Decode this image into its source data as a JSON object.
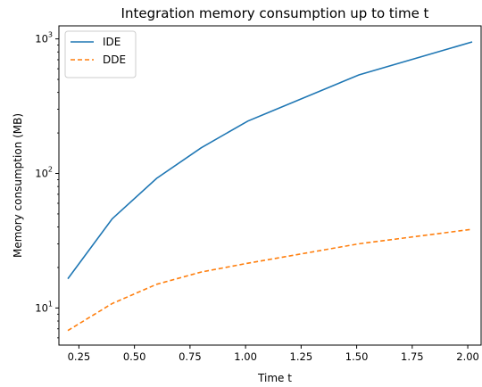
{
  "chart_data": {
    "type": "line",
    "title": "Integration memory consumption up to time t",
    "xlabel": "Time t",
    "ylabel": "Memory consumption (MB)",
    "xlim": [
      0.16,
      2.06
    ],
    "ylim": [
      5.3,
      1250
    ],
    "yscale": "log",
    "x_ticks": [
      0.25,
      0.5,
      0.75,
      1.0,
      1.25,
      1.5,
      1.75,
      2.0
    ],
    "x_tick_labels": [
      "0.25",
      "0.50",
      "0.75",
      "1.00",
      "1.25",
      "1.50",
      "1.75",
      "2.00"
    ],
    "y_ticks": [
      {
        "value": 10,
        "base": "10",
        "exp": "1"
      },
      {
        "value": 100,
        "base": "10",
        "exp": "2"
      },
      {
        "value": 1000,
        "base": "10",
        "exp": "3"
      }
    ],
    "grid": false,
    "legend_position": "top-left",
    "series": [
      {
        "name": "IDE",
        "color": "#1f77b4",
        "style": "solid",
        "x": [
          0.2,
          0.4,
          0.6,
          0.8,
          1.01,
          1.51,
          2.02
        ],
        "y": [
          16.5,
          46,
          92,
          155,
          245,
          540,
          950
        ]
      },
      {
        "name": "DDE",
        "color": "#ff7f0e",
        "style": "dashed",
        "x": [
          0.2,
          0.4,
          0.6,
          0.8,
          1.01,
          1.51,
          2.02
        ],
        "y": [
          6.8,
          10.8,
          15,
          18.5,
          21.5,
          30,
          38.5
        ]
      }
    ]
  }
}
